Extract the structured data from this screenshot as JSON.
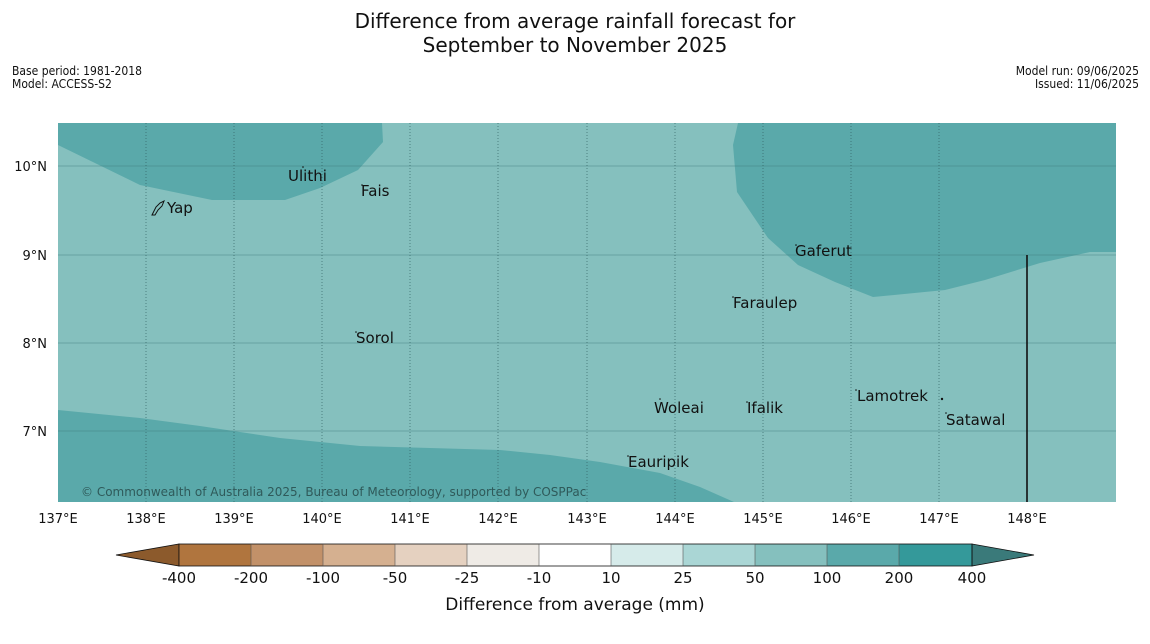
{
  "title": {
    "line1": "Difference from average rainfall forecast for",
    "line2": "September to November 2025"
  },
  "meta_left": {
    "base_period": "Base period: 1981-2018",
    "model": "Model: ACCESS-S2"
  },
  "meta_right": {
    "model_run": "Model run: 09/06/2025",
    "issued": "Issued: 11/06/2025"
  },
  "map": {
    "lat_labels": [
      "10°N",
      "9°N",
      "8°N",
      "7°N"
    ],
    "lon_labels": [
      "137°E",
      "138°E",
      "139°E",
      "140°E",
      "141°E",
      "142°E",
      "143°E",
      "144°E",
      "145°E",
      "146°E",
      "147°E",
      "148°E"
    ],
    "places": {
      "ulithi": "Ulithi",
      "fais": "Fais",
      "yap": "Yap",
      "gaferut": "Gaferut",
      "faraulep": "Faraulep",
      "sorol": "Sorol",
      "lamotrek": "Lamotrek",
      "woleai": "Woleai",
      "ifalik": "Ifalik",
      "satawal": "Satawal",
      "eauripik": "Eauripik"
    },
    "copyright": "© Commonwealth of Australia 2025, Bureau of Meteorology, supported by COSPPac",
    "colors": {
      "class_50_100": "#85c0be",
      "class_100_200": "#5aa9aa"
    }
  },
  "colorbar": {
    "title": "Difference from average (mm)",
    "labels": [
      "-400",
      "-200",
      "-100",
      "-50",
      "-25",
      "-10",
      "10",
      "25",
      "50",
      "100",
      "200",
      "400"
    ],
    "colors": [
      "#8c5a2c",
      "#b0753e",
      "#c29169",
      "#d5b090",
      "#e5d1c0",
      "#efebe6",
      "#ffffff",
      "#d6ebea",
      "#aad6d5",
      "#85c0be",
      "#5aa9aa",
      "#34999a",
      "#3a7a7a"
    ]
  }
}
